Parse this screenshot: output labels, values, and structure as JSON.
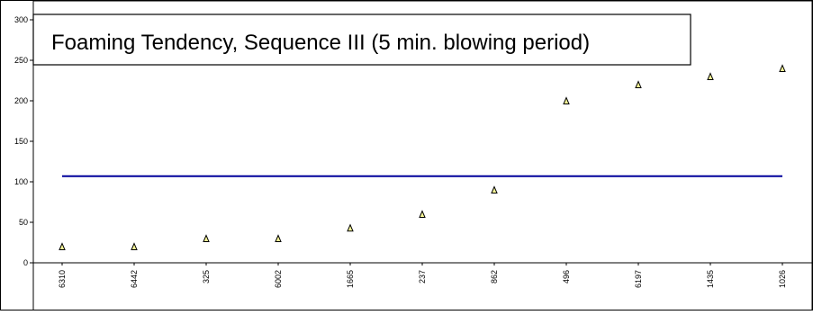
{
  "chart_data": {
    "type": "scatter",
    "title": "Foaming Tendency, Sequence III (5 min. blowing period)",
    "categories": [
      "6310",
      "6442",
      "325",
      "6002",
      "1665",
      "237",
      "862",
      "496",
      "6197",
      "1435",
      "1026"
    ],
    "series": [
      {
        "values": [
          20,
          20,
          30,
          30,
          43,
          60,
          90,
          200,
          220,
          230,
          240
        ],
        "color": "#ffff99",
        "marker": "triangle"
      }
    ],
    "reference_line": {
      "value": 107,
      "color": "#00009c"
    },
    "yticks": [
      0,
      50,
      100,
      150,
      200,
      250,
      300
    ],
    "ylim": [
      0,
      300
    ],
    "grid": false,
    "legend": "none"
  }
}
